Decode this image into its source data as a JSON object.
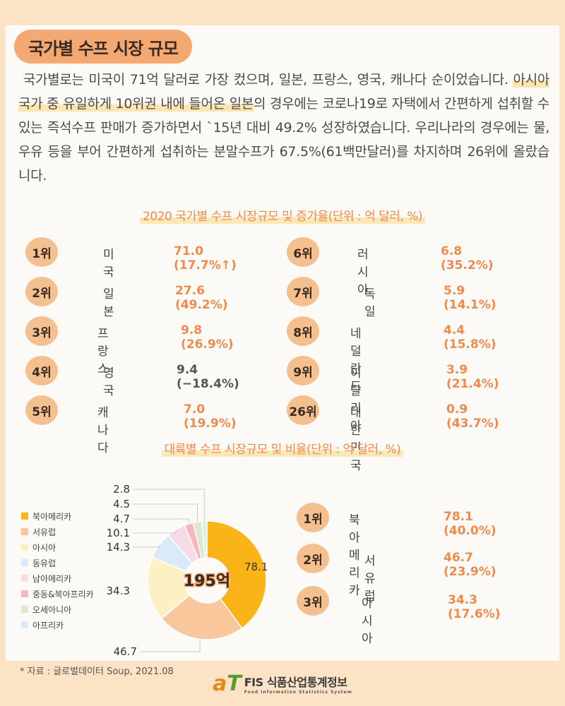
{
  "section_title": "국가별 수프 시장 규모",
  "intro": {
    "part1": "국가별로는 미국이 71억 달러로 가장 컸으며, 일본, 프랑스, 영국, 캐나다 순이었습니다. ",
    "highlight": "아시아 국가 중 유일하게 10위권 내에 들어온 일본",
    "part2": "의 경우에는 코로나19로 자택에서 간편하게 섭취할 수 있는 즉석수프 판매가 증가하면서 `15년 대비 49.2% 성장하였습니다. 우리나라의 경우에는 물, 우유 등을 부어 간편하게 섭취하는 분말수프가 67.5%(61백만달러)를 차지하며 26위에 올랐습니다."
  },
  "ranking_title": "2020 국가별 수프 시장규모 및 증가율(단위 : 억 달러, %)",
  "country_ranking": [
    {
      "rank": "1위",
      "name": "미국",
      "value": "71.0 (17.7%↑)"
    },
    {
      "rank": "2위",
      "name": "일본",
      "value": "27.6 (49.2%)"
    },
    {
      "rank": "3위",
      "name": "프랑스",
      "value": "9.8 (26.9%)"
    },
    {
      "rank": "4위",
      "name": "영국",
      "value": "9.4 (−18.4%)"
    },
    {
      "rank": "5위",
      "name": "캐나다",
      "value": "7.0 (19.9%)"
    },
    {
      "rank": "6위",
      "name": "러시아",
      "value": "6.8 (35.2%)"
    },
    {
      "rank": "7위",
      "name": "독일",
      "value": "5.9 (14.1%)"
    },
    {
      "rank": "8위",
      "name": "네덜란드",
      "value": "4.4 (15.8%)"
    },
    {
      "rank": "9위",
      "name": "이탈리아",
      "value": "3.9 (21.4%)"
    },
    {
      "rank": "26위",
      "name": "대한민국",
      "value": "0.9 (43.7%)"
    }
  ],
  "pie_title": "대륙별 수프 시장규모 및 비율(단위 : 억 달러, %)",
  "chart_data": {
    "type": "pie",
    "title": "대륙별 수프 시장규모 및 비율(단위 : 억 달러, %)",
    "center_label": "195억",
    "categories": [
      "북아메리카",
      "서유럽",
      "아시아",
      "동유럽",
      "남아메리카",
      "중동&북아프리카",
      "오세아니아",
      "아프리카"
    ],
    "values": [
      78.1,
      46.7,
      34.3,
      14.3,
      10.1,
      4.7,
      4.5,
      2.8
    ],
    "value_labels": [
      "78.1",
      "46.7",
      "34.3",
      "14.3",
      "10.1",
      "4.7",
      "4.5",
      "2.8"
    ],
    "colors": [
      "#fbb417",
      "#f9c79c",
      "#fdf0c4",
      "#dbeaf8",
      "#f6dbe8",
      "#f7b6c2",
      "#dcebc7",
      "#d6eef4"
    ],
    "legend_position": "left"
  },
  "continent_ranking": [
    {
      "rank": "1위",
      "name": "북아메리카",
      "value": "78.1 (40.0%)"
    },
    {
      "rank": "2위",
      "name": "서유럽",
      "value": "46.7 (23.9%)"
    },
    {
      "rank": "3위",
      "name": "아시아",
      "value": "34.3 (17.6%)"
    }
  ],
  "source": "* 자료 :  글로벌데이터 Soup, 2021.08",
  "footer": {
    "logo_a": "a",
    "logo_t": "T",
    "main": "FIS 식품산업통계정보",
    "sub": "Food Information Statistics System"
  }
}
